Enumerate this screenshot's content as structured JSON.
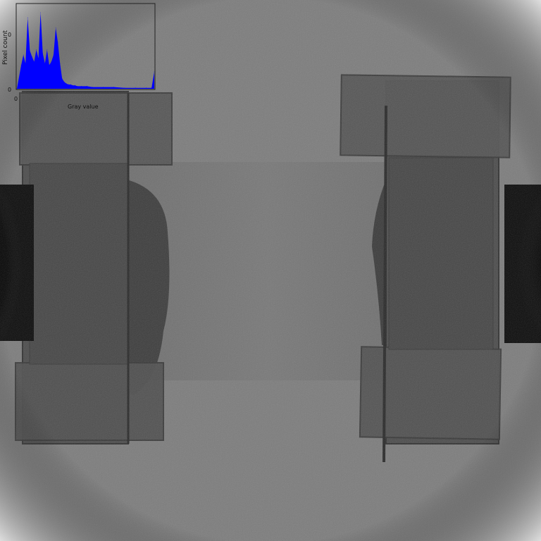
{
  "image": {
    "description_free": true,
    "background_color": "#7d7d7d",
    "specimen_color": "#4a4a4a",
    "dark_core_color": "#0e0e0e"
  },
  "histogram_overlay": {
    "ylabel": "Pixel count",
    "xlabel": "Gray value",
    "y_tick_top": "0",
    "y_tick_bottom": "0",
    "x_tick_left": "0",
    "series_color": "#0000ff"
  },
  "chart_data": {
    "type": "area",
    "title": "",
    "xlabel": "Gray value",
    "ylabel": "Pixel count",
    "xlim": [
      0,
      255
    ],
    "ylim": [
      0,
      100
    ],
    "x": [
      0,
      8,
      12,
      16,
      20,
      24,
      28,
      32,
      36,
      40,
      44,
      48,
      52,
      56,
      60,
      64,
      68,
      72,
      76,
      80,
      84,
      88,
      92,
      96,
      100,
      104,
      108,
      112,
      120,
      130,
      140,
      160,
      180,
      200,
      220,
      240,
      250,
      255
    ],
    "values": [
      0,
      28,
      40,
      30,
      84,
      45,
      38,
      32,
      46,
      36,
      90,
      42,
      30,
      46,
      28,
      32,
      40,
      72,
      55,
      30,
      12,
      8,
      6,
      5,
      5,
      4,
      4,
      3,
      3,
      3,
      2,
      2,
      2,
      1,
      1,
      1,
      1,
      20
    ]
  }
}
